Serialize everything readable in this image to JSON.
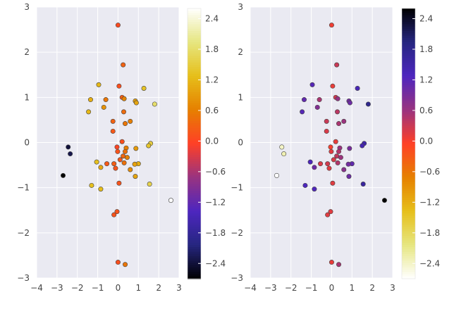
{
  "chart_data": [
    {
      "type": "scatter",
      "panel": "left",
      "title": "",
      "xlabel": "",
      "ylabel": "",
      "xlim": [
        -4,
        3
      ],
      "ylim": [
        -3,
        3
      ],
      "xticks": [
        "−4",
        "−3",
        "−2",
        "−1",
        "0",
        "1",
        "2",
        "3"
      ],
      "yticks": [
        "3",
        "2",
        "1",
        "0",
        "−1",
        "−2",
        "−3"
      ],
      "grid": true,
      "colormap": "CMRmap",
      "colorbar": {
        "orientation": "vertical",
        "range": [
          -2.7,
          2.6
        ],
        "tick_values": [
          2.4,
          1.8,
          1.2,
          0.6,
          0.0,
          -0.6,
          -1.2,
          -1.8,
          -2.4
        ],
        "tick_labels": [
          "2.4",
          "1.8",
          "1.2",
          "0.6",
          "0.0",
          "−0.6",
          "−1.2",
          "−1.8",
          "−2.4"
        ]
      }
    },
    {
      "type": "scatter",
      "panel": "right",
      "title": "",
      "xlabel": "",
      "ylabel": "",
      "xlim": [
        -4,
        3
      ],
      "ylim": [
        -3,
        3
      ],
      "xticks": [
        "−4",
        "−3",
        "−2",
        "−1",
        "0",
        "1",
        "2",
        "3"
      ],
      "yticks": [
        "3",
        "2",
        "1",
        "0",
        "−1",
        "−2",
        "−3"
      ],
      "grid": true,
      "colormap": "CMRmap_r",
      "colorbar": {
        "orientation": "vertical",
        "range": [
          -2.7,
          2.6
        ],
        "tick_values": [
          2.4,
          1.8,
          1.2,
          0.6,
          0.0,
          -0.6,
          -1.2,
          -1.8,
          -2.4
        ],
        "tick_labels": [
          "2.4",
          "1.8",
          "1.2",
          "0.6",
          "0.0",
          "−0.6",
          "−1.2",
          "−1.8",
          "−2.4"
        ]
      }
    }
  ],
  "points": [
    {
      "x": 0.0,
      "y": 2.6,
      "c": 0.05
    },
    {
      "x": 0.25,
      "y": 1.72,
      "c": 0.3
    },
    {
      "x": -0.95,
      "y": 1.28,
      "c": 1.2
    },
    {
      "x": 0.05,
      "y": 1.25,
      "c": 0.1
    },
    {
      "x": 1.27,
      "y": 1.2,
      "c": 1.35
    },
    {
      "x": 0.2,
      "y": 1.0,
      "c": 0.25
    },
    {
      "x": 0.3,
      "y": 0.97,
      "c": 0.65
    },
    {
      "x": -1.35,
      "y": 0.95,
      "c": 1.1
    },
    {
      "x": -0.6,
      "y": 0.95,
      "c": 0.5
    },
    {
      "x": 0.85,
      "y": 0.92,
      "c": 0.95
    },
    {
      "x": 0.9,
      "y": 0.88,
      "c": 1.0
    },
    {
      "x": 1.8,
      "y": 0.85,
      "c": 1.8
    },
    {
      "x": -0.7,
      "y": 0.78,
      "c": 0.8
    },
    {
      "x": -1.45,
      "y": 0.68,
      "c": 1.2
    },
    {
      "x": 0.28,
      "y": 0.68,
      "c": 0.4
    },
    {
      "x": -0.25,
      "y": 0.47,
      "c": 0.3
    },
    {
      "x": 0.6,
      "y": 0.47,
      "c": 0.6
    },
    {
      "x": 0.35,
      "y": 0.42,
      "c": 0.5
    },
    {
      "x": -0.25,
      "y": 0.25,
      "c": 0.2
    },
    {
      "x": 0.2,
      "y": 0.02,
      "c": 0.1
    },
    {
      "x": 1.6,
      "y": -0.02,
      "c": 1.5
    },
    {
      "x": 1.5,
      "y": -0.07,
      "c": 1.4
    },
    {
      "x": -2.45,
      "y": -0.1,
      "c": -2.4
    },
    {
      "x": -0.05,
      "y": -0.1,
      "c": 0.0
    },
    {
      "x": 0.4,
      "y": -0.12,
      "c": 0.6
    },
    {
      "x": 0.88,
      "y": -0.13,
      "c": 0.9
    },
    {
      "x": -0.02,
      "y": -0.2,
      "c": 0.15
    },
    {
      "x": 0.35,
      "y": -0.2,
      "c": 0.45
    },
    {
      "x": -2.35,
      "y": -0.25,
      "c": -2.3
    },
    {
      "x": 0.25,
      "y": -0.3,
      "c": 0.35
    },
    {
      "x": 0.45,
      "y": -0.33,
      "c": 0.6
    },
    {
      "x": 0.1,
      "y": -0.38,
      "c": 0.2
    },
    {
      "x": 0.3,
      "y": -0.45,
      "c": 0.45
    },
    {
      "x": -0.55,
      "y": -0.47,
      "c": 0.2
    },
    {
      "x": -0.2,
      "y": -0.47,
      "c": 0.25
    },
    {
      "x": 1.0,
      "y": -0.47,
      "c": 1.1
    },
    {
      "x": 0.82,
      "y": -0.48,
      "c": 0.95
    },
    {
      "x": -1.05,
      "y": -0.43,
      "c": 1.3
    },
    {
      "x": -0.85,
      "y": -0.55,
      "c": 1.0
    },
    {
      "x": -0.12,
      "y": -0.57,
      "c": 0.15
    },
    {
      "x": 0.6,
      "y": -0.6,
      "c": 0.75
    },
    {
      "x": 0.85,
      "y": -0.75,
      "c": 1.0
    },
    {
      "x": -2.7,
      "y": -0.73,
      "c": -2.7
    },
    {
      "x": 0.05,
      "y": -0.9,
      "c": 0.15
    },
    {
      "x": 1.55,
      "y": -0.92,
      "c": 1.6
    },
    {
      "x": -1.3,
      "y": -0.95,
      "c": 1.3
    },
    {
      "x": -0.85,
      "y": -1.03,
      "c": 1.25
    },
    {
      "x": 2.6,
      "y": -1.28,
      "c": 2.6
    },
    {
      "x": -0.05,
      "y": -1.53,
      "c": 0.15
    },
    {
      "x": -0.2,
      "y": -1.6,
      "c": 0.15
    },
    {
      "x": 0.0,
      "y": -2.65,
      "c": 0.1
    },
    {
      "x": 0.35,
      "y": -2.7,
      "c": 0.5
    }
  ]
}
